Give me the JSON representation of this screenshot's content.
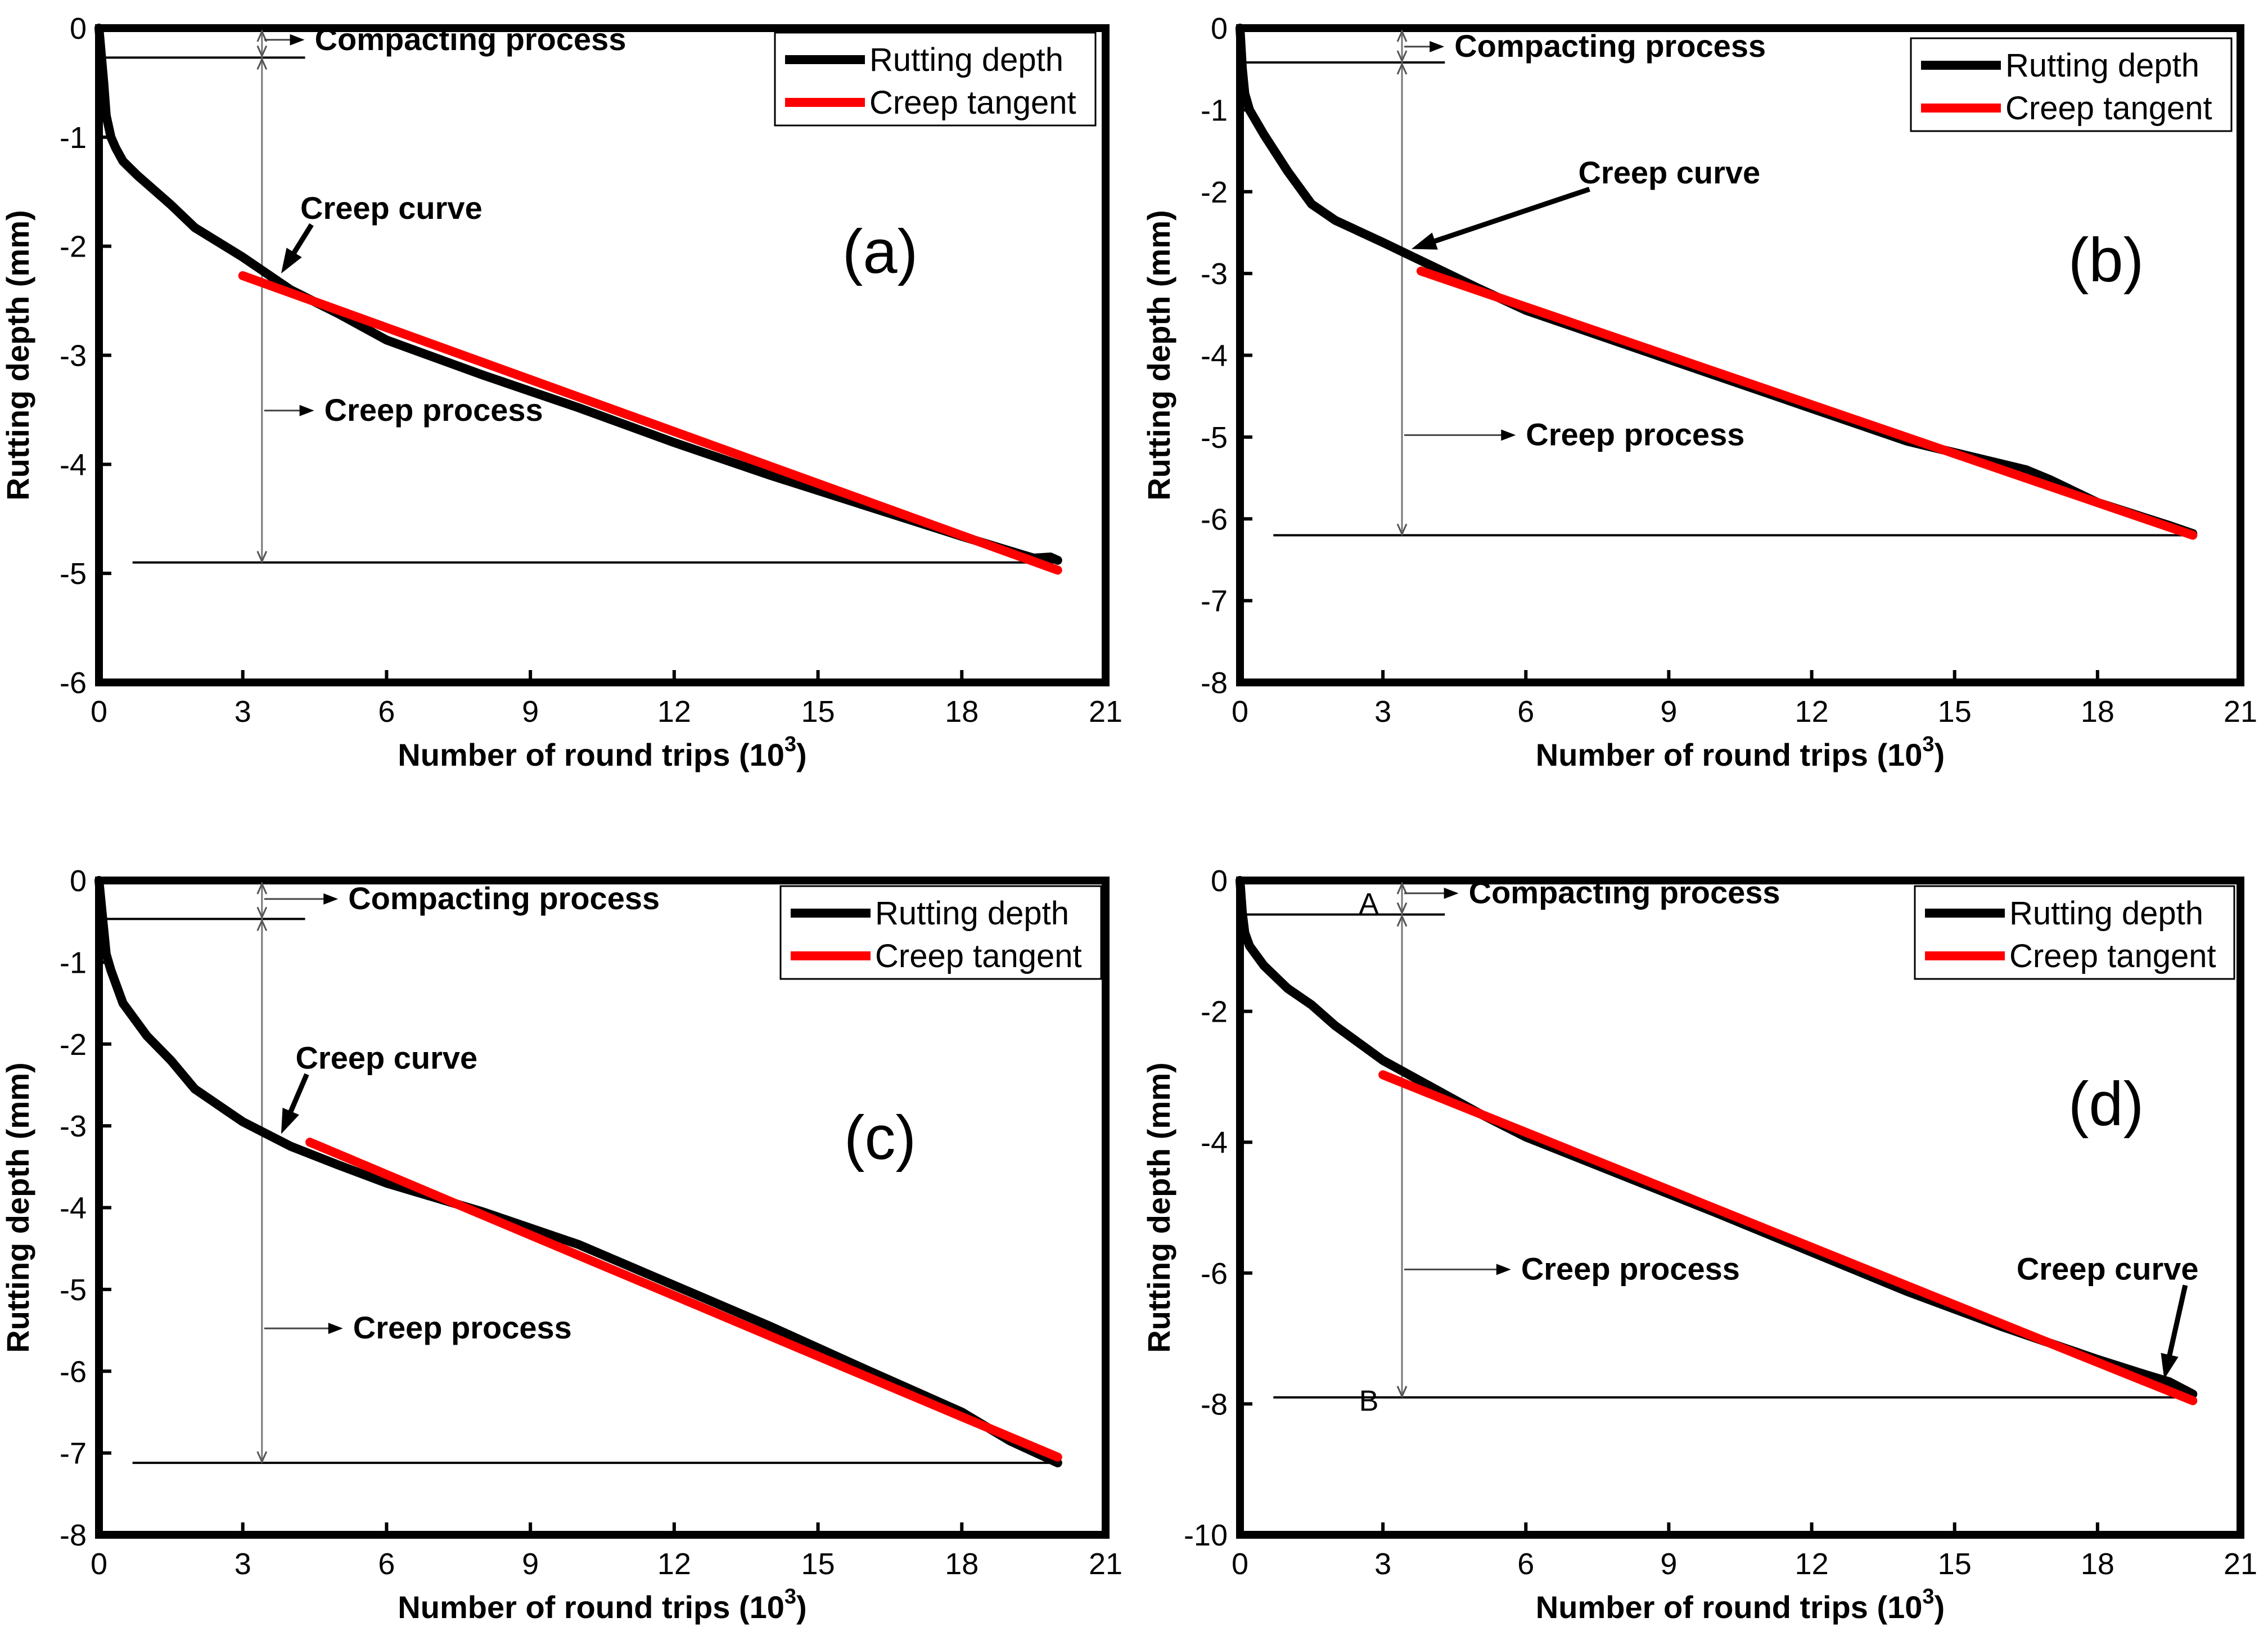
{
  "chart_data": [
    {
      "type": "line",
      "panel_label": "(a)",
      "xlabel": "Number of round trips (10",
      "xlabel_sup": "3",
      "xlabel_end": ")",
      "ylabel": "Rutting depth (mm)",
      "xlim": [
        0,
        21
      ],
      "ylim": [
        -6,
        0
      ],
      "xticks": [
        0,
        3,
        6,
        9,
        12,
        15,
        18,
        21
      ],
      "yticks": [
        0,
        -1,
        -2,
        -3,
        -4,
        -5,
        -6
      ],
      "colors": {
        "rutting": "#000000",
        "tangent": "#ff0000"
      },
      "series": [
        {
          "name": "Rutting depth",
          "x": [
            0,
            0.1,
            0.15,
            0.25,
            0.35,
            0.5,
            0.8,
            1.5,
            2,
            3,
            4,
            5,
            6,
            8,
            10,
            12,
            14,
            16,
            18,
            19.5,
            19.85,
            20
          ],
          "y": [
            0,
            -0.5,
            -0.8,
            -1.0,
            -1.1,
            -1.22,
            -1.35,
            -1.62,
            -1.83,
            -2.1,
            -2.4,
            -2.62,
            -2.86,
            -3.18,
            -3.48,
            -3.8,
            -4.1,
            -4.38,
            -4.66,
            -4.86,
            -4.85,
            -4.88
          ]
        },
        {
          "name": "Creep tangent",
          "x": [
            3,
            20
          ],
          "y": [
            -2.27,
            -4.97
          ]
        }
      ],
      "annotations": [
        {
          "text": "Compacting process",
          "x": 4.5,
          "y": -0.2
        },
        {
          "text": "Creep curve",
          "x": 4.2,
          "y": -1.75,
          "arrow_to": [
            3.8,
            -2.25
          ]
        },
        {
          "text": "Creep process",
          "x": 4.7,
          "y": -3.6
        }
      ],
      "compaction_line_y": -0.27,
      "end_line_y": -4.9,
      "bracket_x": 3.4
    },
    {
      "type": "line",
      "panel_label": "(b)",
      "xlabel": "Number of round trips (10",
      "xlabel_sup": "3",
      "xlabel_end": ")",
      "ylabel": "Rutting depth (mm)",
      "xlim": [
        0,
        21
      ],
      "ylim": [
        -8,
        0
      ],
      "xticks": [
        0,
        3,
        6,
        9,
        12,
        15,
        18,
        21
      ],
      "yticks": [
        0,
        -1,
        -2,
        -3,
        -4,
        -5,
        -6,
        -7,
        -8
      ],
      "colors": {
        "rutting": "#000000",
        "tangent": "#ff0000"
      },
      "series": [
        {
          "name": "Rutting depth",
          "x": [
            0,
            0.05,
            0.1,
            0.2,
            0.5,
            1,
            1.5,
            2,
            3,
            4,
            5,
            6,
            8,
            10,
            12,
            14,
            16.5,
            17,
            18,
            19.5,
            20
          ],
          "y": [
            0,
            -0.5,
            -0.8,
            -1.0,
            -1.3,
            -1.75,
            -2.15,
            -2.35,
            -2.62,
            -2.9,
            -3.18,
            -3.45,
            -3.85,
            -4.25,
            -4.65,
            -5.05,
            -5.4,
            -5.52,
            -5.8,
            -6.08,
            -6.18
          ]
        },
        {
          "name": "Creep tangent",
          "x": [
            3.8,
            20
          ],
          "y": [
            -2.97,
            -6.2
          ]
        }
      ],
      "annotations": [
        {
          "text": "Compacting process",
          "x": 4.5,
          "y": -0.35
        },
        {
          "text": "Creep curve",
          "x": 7.1,
          "y": -1.9,
          "arrow_to": [
            3.6,
            -2.7
          ]
        },
        {
          "text": "Creep process",
          "x": 6,
          "y": -5.1
        }
      ],
      "compaction_line_y": -0.42,
      "end_line_y": -6.2,
      "bracket_x": 3.4
    },
    {
      "type": "line",
      "panel_label": "(c)",
      "xlabel": "Number of round trips (10",
      "xlabel_sup": "3",
      "xlabel_end": ")",
      "ylabel": "Rutting depth (mm)",
      "xlim": [
        0,
        21
      ],
      "ylim": [
        -8,
        0
      ],
      "xticks": [
        0,
        3,
        6,
        9,
        12,
        15,
        18,
        21
      ],
      "yticks": [
        0,
        -1,
        -2,
        -3,
        -4,
        -5,
        -6,
        -7,
        -8
      ],
      "colors": {
        "rutting": "#000000",
        "tangent": "#ff0000"
      },
      "series": [
        {
          "name": "Rutting depth",
          "x": [
            0,
            0.1,
            0.15,
            0.25,
            0.5,
            1,
            1.5,
            2,
            3,
            4,
            5,
            6,
            8,
            10,
            12,
            14,
            16,
            18,
            19,
            20
          ],
          "y": [
            0,
            -0.6,
            -0.9,
            -1.1,
            -1.5,
            -1.9,
            -2.2,
            -2.55,
            -2.95,
            -3.25,
            -3.48,
            -3.7,
            -4.05,
            -4.45,
            -4.95,
            -5.45,
            -5.98,
            -6.5,
            -6.85,
            -7.12
          ]
        },
        {
          "name": "Creep tangent",
          "x": [
            4.4,
            20
          ],
          "y": [
            -3.2,
            -7.05
          ]
        }
      ],
      "annotations": [
        {
          "text": "Compacting process",
          "x": 5.2,
          "y": -0.35
        },
        {
          "text": "Creep curve",
          "x": 4.1,
          "y": -2.3,
          "arrow_to": [
            3.8,
            -3.1
          ]
        },
        {
          "text": "Creep process",
          "x": 5.3,
          "y": -5.6
        }
      ],
      "compaction_line_y": -0.47,
      "end_line_y": -7.12,
      "bracket_x": 3.4
    },
    {
      "type": "line",
      "panel_label": "(d)",
      "xlabel": "Number of round trips (10",
      "xlabel_sup": "3",
      "xlabel_end": ")",
      "ylabel": "Rutting depth (mm)",
      "xlim": [
        0,
        21
      ],
      "ylim": [
        -10,
        0
      ],
      "xticks": [
        0,
        3,
        6,
        9,
        12,
        15,
        18,
        21
      ],
      "yticks": [
        0,
        -2,
        -4,
        -6,
        -8,
        -10
      ],
      "colors": {
        "rutting": "#000000",
        "tangent": "#ff0000"
      },
      "series": [
        {
          "name": "Rutting depth",
          "x": [
            0,
            0.05,
            0.1,
            0.2,
            0.5,
            1,
            1.5,
            2,
            3,
            4,
            5,
            6,
            8,
            10,
            12,
            14,
            16,
            18,
            19,
            19.5,
            20
          ],
          "y": [
            0,
            -0.5,
            -0.8,
            -1.0,
            -1.3,
            -1.65,
            -1.9,
            -2.22,
            -2.75,
            -3.15,
            -3.55,
            -3.92,
            -4.5,
            -5.08,
            -5.68,
            -6.28,
            -6.82,
            -7.32,
            -7.55,
            -7.66,
            -7.85
          ]
        },
        {
          "name": "Creep tangent",
          "x": [
            3,
            20
          ],
          "y": [
            -2.97,
            -7.95
          ]
        }
      ],
      "annotations": [
        {
          "text": "Compacting process",
          "x": 4.8,
          "y": -0.35
        },
        {
          "text": "Creep curve",
          "x": 16.3,
          "y": -6.1,
          "arrow_to": [
            19.4,
            -7.62
          ]
        },
        {
          "text": "Creep process",
          "x": 5.9,
          "y": -6.1
        }
      ],
      "point_labels": [
        {
          "text": "A",
          "x": 2.5,
          "y": -0.35
        },
        {
          "text": "B",
          "x": 2.5,
          "y": -7.95
        }
      ],
      "compaction_line_y": -0.52,
      "end_line_y": -7.9,
      "bracket_x": 3.4
    }
  ],
  "legend": {
    "rutting_label": "Rutting depth",
    "tangent_label": "Creep tangent"
  }
}
